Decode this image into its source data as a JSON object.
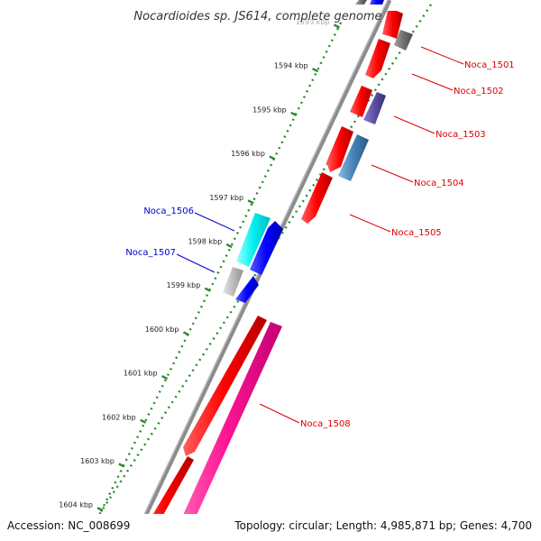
{
  "title": "Nocardioides sp. JS614, complete genome",
  "footer": {
    "accession": "Accession: NC_008699",
    "topology": "Topology: circular; Length: 4,985,871 bp; Genes: 4,700"
  },
  "ticks": [
    {
      "label": "1593 kbp"
    },
    {
      "label": "1594 kbp"
    },
    {
      "label": "1595 kbp"
    },
    {
      "label": "1596 kbp"
    },
    {
      "label": "1597 kbp"
    },
    {
      "label": "1598 kbp"
    },
    {
      "label": "1599 kbp"
    },
    {
      "label": "1600 kbp"
    },
    {
      "label": "1601 kbp"
    },
    {
      "label": "1602 kbp"
    },
    {
      "label": "1603 kbp"
    },
    {
      "label": "1604 kbp"
    }
  ],
  "genes": [
    {
      "name": "Noca_1501",
      "strand": "plus",
      "color": "#dd0000"
    },
    {
      "name": "Noca_1502",
      "strand": "plus",
      "color": "#dd0000"
    },
    {
      "name": "Noca_1503",
      "strand": "plus",
      "color": "#dd0000"
    },
    {
      "name": "Noca_1504",
      "strand": "plus",
      "color": "#dd0000"
    },
    {
      "name": "Noca_1505",
      "strand": "plus",
      "color": "#dd0000"
    },
    {
      "name": "Noca_1506",
      "strand": "minus",
      "color": "#0000cc"
    },
    {
      "name": "Noca_1507",
      "strand": "minus",
      "color": "#0000cc"
    },
    {
      "name": "Noca_1508",
      "strand": "plus",
      "color": "#dd0000"
    }
  ],
  "colors": {
    "backbone": "#8c8c8c",
    "tick_ring": "#2a8a2a",
    "cds_red": "#ff0000",
    "cds_blue": "#0000ff",
    "cds_cyan": "#00f0f0",
    "cds_gray": "#bcbcbc",
    "cds_darkgray": "#707070",
    "cds_purple": "#5a4fa0",
    "cds_steelblue": "#4682b4",
    "cds_pink": "#ff1493"
  }
}
